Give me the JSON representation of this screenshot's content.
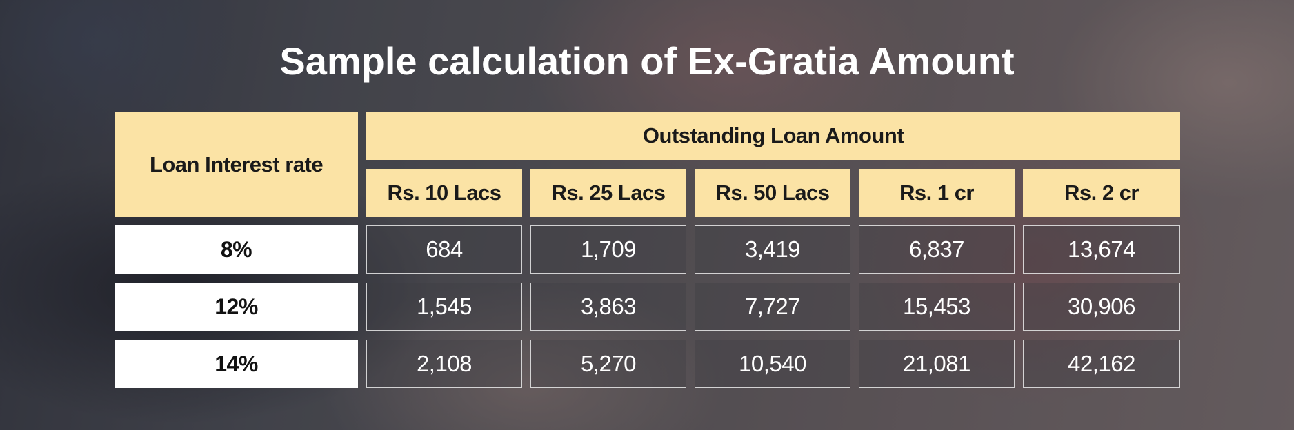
{
  "title": "Sample calculation of Ex-Gratia Amount",
  "table": {
    "row_header": "Loan Interest rate",
    "group_header": "Outstanding Loan Amount",
    "columns": [
      "Rs. 10 Lacs",
      "Rs. 25 Lacs",
      "Rs. 50 Lacs",
      "Rs. 1 cr",
      "Rs. 2 cr"
    ],
    "rows": [
      {
        "rate": "8%",
        "values": [
          "684",
          "1,709",
          "3,419",
          "6,837",
          "13,674"
        ]
      },
      {
        "rate": "12%",
        "values": [
          "1,545",
          "3,863",
          "7,727",
          "15,453",
          "30,906"
        ]
      },
      {
        "rate": "14%",
        "values": [
          "2,108",
          "5,270",
          "10,540",
          "21,081",
          "42,162"
        ]
      }
    ]
  },
  "colors": {
    "header_fill": "#fbe3a5",
    "rate_fill": "#ffffff",
    "value_border": "#ebebeb",
    "title_text": "#ffffff"
  }
}
